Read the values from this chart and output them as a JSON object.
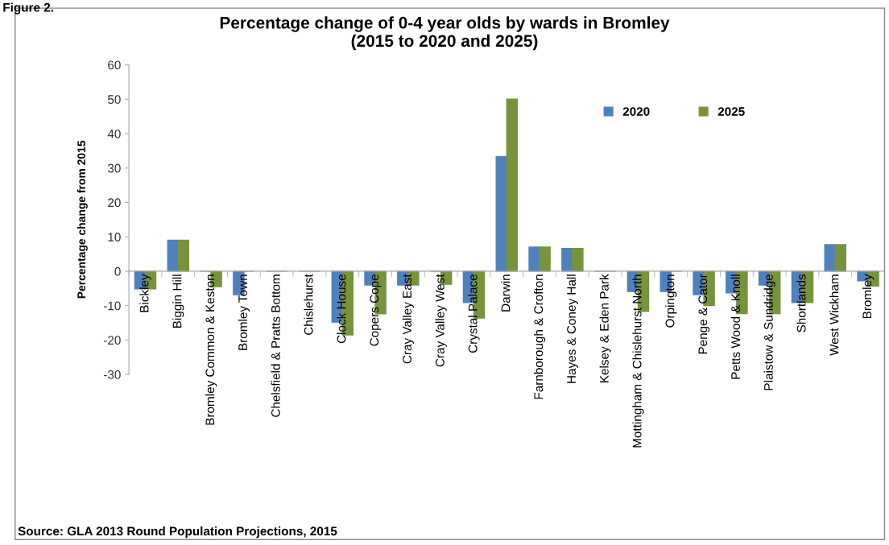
{
  "chart_data": {
    "type": "bar",
    "title": "Percentage change of 0-4 year olds by wards in Bromley\n(2015 to 2020 and 2025)",
    "ylabel": "Percentage change from 2015",
    "categories": [
      "Bickley",
      "Biggin Hill",
      "Bromley Common & Keston",
      "Bromley Town",
      "Chelsfield & Pratts Bottom",
      "Chislehurst",
      "Clock House",
      "Copers Cope",
      "Cray Valley East",
      "Cray Valley West",
      "Crystal Palace",
      "Darwin",
      "Farnborough & Crofton",
      "Hayes & Coney Hall",
      "Kelsey & Eden Park",
      "Mottingham & Chislehurst North",
      "Orpington",
      "Penge & Cator",
      "Petts Wood & Knoll",
      "Plaistow & Sundridge",
      "Shortlands",
      "West Wickham",
      "Bromley"
    ],
    "series": [
      {
        "name": "2020",
        "color": "#4f81bd",
        "values": [
          -5.1,
          9,
          0,
          -6.8,
          0,
          0,
          -14.8,
          -4,
          -4,
          0,
          -9.1,
          33.3,
          7,
          6.6,
          0,
          -5.9,
          -5.9,
          -6.8,
          -6.3,
          -4,
          -9.1,
          7.7,
          -2.8
        ]
      },
      {
        "name": "2025",
        "color": "#77933c",
        "values": [
          -5.1,
          9,
          -4.5,
          0,
          0,
          0,
          -18.5,
          -12.4,
          -4,
          -3.8,
          -13.6,
          50,
          7,
          6.6,
          0,
          -11.7,
          0,
          -10,
          -12.3,
          -12.3,
          -9.1,
          7.7,
          -4.3
        ]
      }
    ],
    "ylim": [
      -30,
      60
    ],
    "yticks": [
      -30,
      -20,
      -10,
      0,
      10,
      20,
      30,
      40,
      50,
      60
    ],
    "grid": false,
    "legend": "top right",
    "annotations": [
      "Figure 2.",
      "Source: GLA 2013 Round Population Projections, 2015"
    ]
  }
}
